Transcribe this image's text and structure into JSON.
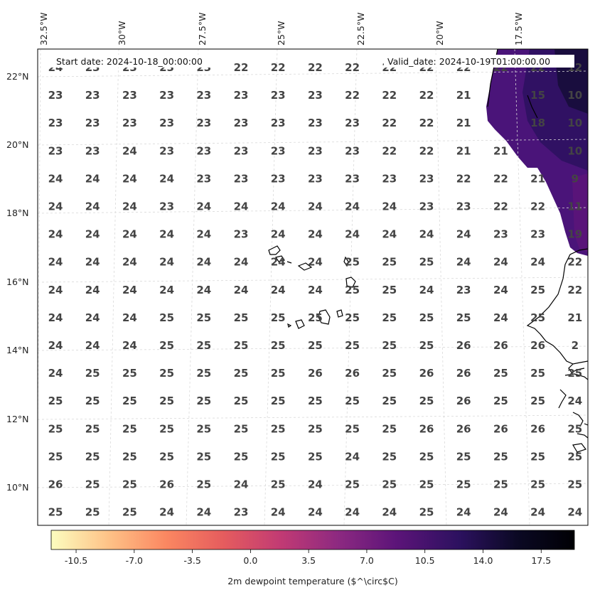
{
  "header": {
    "start_date": "Start date: 2024-10-18_00:00:00",
    "valid_date": "Valid_date: 2024-10-19T01:00:00.00"
  },
  "lon_labels": [
    "32.5°W",
    "30°W",
    "27.5°W",
    "25°W",
    "22.5°W",
    "20°W",
    "17.5°W"
  ],
  "lat_labels": [
    "22°N",
    "20°N",
    "18°N",
    "16°N",
    "14°N",
    "12°N",
    "10°N"
  ],
  "grid_values": [
    [
      "24",
      "23",
      "23",
      "23",
      "23",
      "22",
      "22",
      "22",
      "22",
      "22",
      "22",
      "22",
      "22",
      "22",
      "12"
    ],
    [
      "23",
      "23",
      "23",
      "23",
      "23",
      "23",
      "23",
      "23",
      "22",
      "22",
      "22",
      "21",
      "",
      "15",
      "10"
    ],
    [
      "23",
      "23",
      "23",
      "23",
      "23",
      "23",
      "23",
      "23",
      "23",
      "22",
      "22",
      "21",
      "",
      "18",
      "10"
    ],
    [
      "23",
      "23",
      "24",
      "23",
      "23",
      "23",
      "23",
      "23",
      "23",
      "22",
      "22",
      "21",
      "21",
      "",
      "10"
    ],
    [
      "24",
      "24",
      "24",
      "24",
      "23",
      "23",
      "23",
      "23",
      "23",
      "23",
      "23",
      "22",
      "22",
      "21",
      "9"
    ],
    [
      "24",
      "24",
      "24",
      "23",
      "24",
      "24",
      "24",
      "24",
      "24",
      "24",
      "23",
      "23",
      "22",
      "22",
      "11"
    ],
    [
      "24",
      "24",
      "24",
      "24",
      "24",
      "23",
      "24",
      "24",
      "24",
      "24",
      "24",
      "24",
      "23",
      "23",
      "19"
    ],
    [
      "24",
      "24",
      "24",
      "24",
      "24",
      "24",
      "24",
      "24",
      "25",
      "25",
      "25",
      "24",
      "24",
      "24",
      "22"
    ],
    [
      "24",
      "24",
      "24",
      "24",
      "24",
      "24",
      "24",
      "24",
      "25",
      "25",
      "24",
      "23",
      "24",
      "25",
      "22"
    ],
    [
      "24",
      "24",
      "24",
      "25",
      "25",
      "25",
      "25",
      "25",
      "25",
      "25",
      "25",
      "25",
      "24",
      "25",
      "21"
    ],
    [
      "24",
      "24",
      "24",
      "25",
      "25",
      "25",
      "25",
      "25",
      "25",
      "25",
      "25",
      "26",
      "26",
      "26",
      "2"
    ],
    [
      "24",
      "25",
      "25",
      "25",
      "25",
      "25",
      "25",
      "26",
      "26",
      "25",
      "26",
      "26",
      "25",
      "25",
      "25"
    ],
    [
      "25",
      "25",
      "25",
      "25",
      "25",
      "25",
      "25",
      "25",
      "25",
      "25",
      "25",
      "26",
      "25",
      "25",
      "24"
    ],
    [
      "25",
      "25",
      "25",
      "25",
      "25",
      "25",
      "25",
      "25",
      "25",
      "25",
      "26",
      "26",
      "26",
      "26",
      "25"
    ],
    [
      "25",
      "25",
      "25",
      "25",
      "25",
      "25",
      "25",
      "25",
      "24",
      "25",
      "25",
      "25",
      "25",
      "25",
      "25"
    ],
    [
      "26",
      "25",
      "25",
      "26",
      "25",
      "24",
      "25",
      "24",
      "25",
      "25",
      "25",
      "25",
      "25",
      "25",
      "25"
    ],
    [
      "25",
      "25",
      "25",
      "24",
      "24",
      "23",
      "24",
      "24",
      "24",
      "24",
      "25",
      "24",
      "24",
      "24",
      "24"
    ]
  ],
  "colorbar": {
    "ticks": [
      "-10.5",
      "-7.0",
      "-3.5",
      "0.0",
      "3.5",
      "7.0",
      "10.5",
      "14.0",
      "17.5"
    ],
    "label": "2m dewpoint temperature ($^\\circ$C)",
    "colormap": "magma_r",
    "colors": [
      "#fcfdbf",
      "#fec287",
      "#fb8761",
      "#e55c5e",
      "#c13a74",
      "#8c2981",
      "#5c1479",
      "#2c115f",
      "#0b0924",
      "#000004"
    ],
    "range": [
      -12,
      19.5
    ]
  }
}
